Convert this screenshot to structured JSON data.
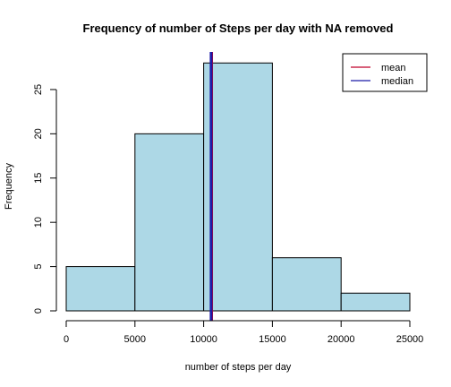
{
  "chart_data": {
    "type": "bar",
    "title": "Frequency of number of Steps per day with NA removed",
    "xlabel": "number of steps per day",
    "ylabel": "Frequency",
    "bins": [
      {
        "from": 0,
        "to": 5000,
        "count": 5
      },
      {
        "from": 5000,
        "to": 10000,
        "count": 20
      },
      {
        "from": 10000,
        "to": 15000,
        "count": 28
      },
      {
        "from": 15000,
        "to": 20000,
        "count": 6
      },
      {
        "from": 20000,
        "to": 25000,
        "count": 2
      }
    ],
    "x_ticks": [
      0,
      5000,
      10000,
      15000,
      20000,
      25000
    ],
    "x_tick_labels": [
      "0",
      "5000",
      "10000",
      "15000",
      "20000",
      "25000"
    ],
    "y_ticks": [
      0,
      5,
      10,
      15,
      20,
      25
    ],
    "y_tick_labels": [
      "0",
      "5",
      "10",
      "15",
      "20",
      "25"
    ],
    "xlim": [
      0,
      25000
    ],
    "ylim": [
      0,
      28
    ],
    "bar_color": "#add8e6",
    "vlines": [
      {
        "name": "mean",
        "value": 10580,
        "color": "#c0002a"
      },
      {
        "name": "median",
        "value": 10540,
        "color": "#1a1aa8"
      }
    ],
    "legend": {
      "position": "top-right",
      "entries": [
        {
          "label": "mean",
          "color": "#c0002a"
        },
        {
          "label": "median",
          "color": "#1a1aa8"
        }
      ]
    },
    "grid": false
  }
}
